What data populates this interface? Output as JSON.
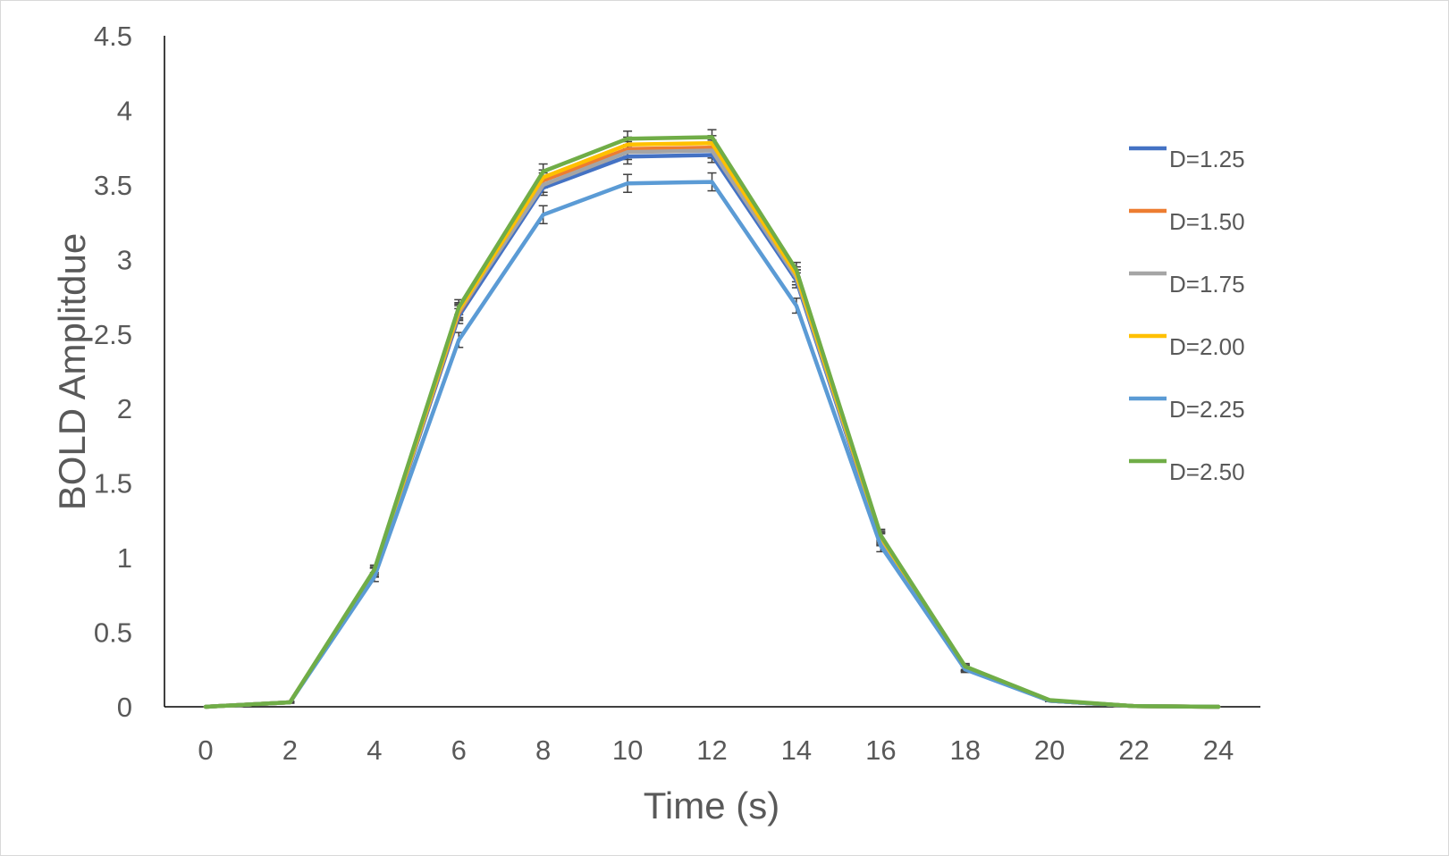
{
  "chart_data": {
    "type": "line",
    "title": "",
    "xlabel": "Time (s)",
    "ylabel": "BOLD Amplitdue",
    "x": [
      0,
      2,
      4,
      6,
      8,
      10,
      12,
      14,
      16,
      18,
      20,
      22,
      24
    ],
    "xlim": [
      0,
      24
    ],
    "ylim": [
      0,
      4.5
    ],
    "yticks": [
      "0",
      "0.5",
      "1",
      "1.5",
      "2",
      "2.5",
      "3",
      "3.5",
      "4",
      "4.5"
    ],
    "xticks": [
      "0",
      "2",
      "4",
      "6",
      "8",
      "10",
      "12",
      "14",
      "16",
      "18",
      "20",
      "22",
      "24"
    ],
    "grid": false,
    "legend_position": "right",
    "error_bars": true,
    "error_bar_color": "#404040",
    "series": [
      {
        "name": "D=1.25",
        "color": "#4472C4",
        "values": [
          0,
          0.03,
          0.9,
          2.62,
          3.48,
          3.69,
          3.7,
          2.86,
          1.12,
          0.26,
          0.04,
          0.005,
          0
        ],
        "errors": [
          0,
          0.005,
          0.03,
          0.05,
          0.05,
          0.05,
          0.05,
          0.05,
          0.04,
          0.02,
          0.005,
          0,
          0
        ]
      },
      {
        "name": "D=1.50",
        "color": "#ED7D31",
        "values": [
          0,
          0.03,
          0.9,
          2.64,
          3.53,
          3.74,
          3.75,
          2.88,
          1.13,
          0.26,
          0.04,
          0.005,
          0
        ],
        "errors": [
          0,
          0.005,
          0.03,
          0.05,
          0.05,
          0.05,
          0.05,
          0.05,
          0.04,
          0.02,
          0.005,
          0,
          0
        ]
      },
      {
        "name": "D=1.75",
        "color": "#A5A5A5",
        "values": [
          0,
          0.03,
          0.9,
          2.65,
          3.5,
          3.72,
          3.73,
          2.88,
          1.13,
          0.26,
          0.04,
          0.005,
          0
        ],
        "errors": [
          0,
          0.005,
          0.03,
          0.05,
          0.05,
          0.05,
          0.05,
          0.05,
          0.04,
          0.02,
          0.005,
          0,
          0
        ]
      },
      {
        "name": "D=2.00",
        "color": "#FFC000",
        "values": [
          0,
          0.03,
          0.91,
          2.66,
          3.55,
          3.77,
          3.78,
          2.9,
          1.14,
          0.26,
          0.04,
          0.005,
          0
        ],
        "errors": [
          0,
          0.005,
          0.03,
          0.05,
          0.05,
          0.05,
          0.05,
          0.05,
          0.04,
          0.02,
          0.005,
          0,
          0
        ]
      },
      {
        "name": "D=2.25",
        "color": "#5B9BD5",
        "values": [
          0,
          0.03,
          0.87,
          2.46,
          3.3,
          3.51,
          3.52,
          2.69,
          1.08,
          0.25,
          0.04,
          0.005,
          0
        ],
        "errors": [
          0,
          0.005,
          0.03,
          0.05,
          0.06,
          0.06,
          0.06,
          0.05,
          0.04,
          0.02,
          0.005,
          0,
          0
        ]
      },
      {
        "name": "D=2.50",
        "color": "#70AD47",
        "values": [
          0,
          0.03,
          0.92,
          2.68,
          3.59,
          3.81,
          3.82,
          2.93,
          1.15,
          0.27,
          0.045,
          0.005,
          0
        ],
        "errors": [
          0,
          0.005,
          0.03,
          0.05,
          0.05,
          0.05,
          0.05,
          0.05,
          0.04,
          0.02,
          0.005,
          0,
          0
        ]
      }
    ]
  }
}
